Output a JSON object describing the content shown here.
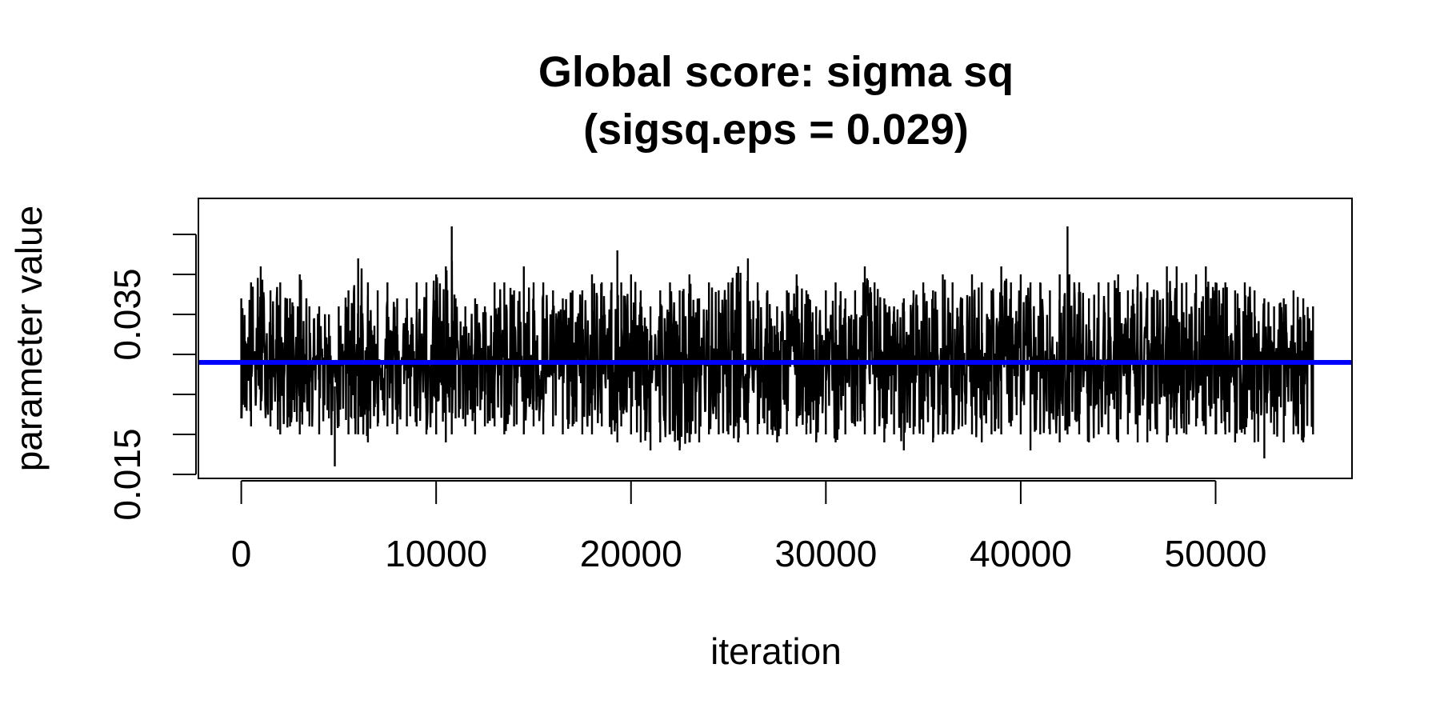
{
  "chart_data": {
    "type": "line",
    "title_line1": "Global score: sigma sq",
    "title_line2": "(sigsq.eps = 0.029)",
    "xlabel": "iteration",
    "ylabel": "parameter value",
    "xlim": [
      -2200,
      57000
    ],
    "ylim": [
      0.0145,
      0.0495
    ],
    "x_ticks": [
      0,
      10000,
      20000,
      30000,
      40000,
      50000
    ],
    "x_tick_labels": [
      "0",
      "10000",
      "20000",
      "30000",
      "40000",
      "50000"
    ],
    "y_ticks": [
      0.015,
      0.02,
      0.025,
      0.03,
      0.035,
      0.04,
      0.045
    ],
    "y_tick_labels": [
      "0.015",
      "",
      "",
      "",
      "0.035",
      "",
      ""
    ],
    "reference_line": {
      "y": 0.029,
      "color": "#0000ff"
    },
    "trace_color": "#000000",
    "series": [
      {
        "x": [
          0,
          500,
          1000,
          1500,
          2000,
          2500,
          3000,
          3500,
          4000,
          4500,
          4800,
          5000,
          5500,
          6000,
          6500,
          7000,
          7500,
          8000,
          8500,
          9000,
          9500,
          10000,
          10500,
          10800,
          11000,
          11500,
          12000,
          12500,
          13000,
          13500,
          14000,
          14500,
          15000,
          15500,
          16000,
          16500,
          17000,
          17500,
          18000,
          18500,
          19000,
          19300,
          19500,
          20000,
          20500,
          21000,
          21500,
          22000,
          22500,
          23000,
          23500,
          24000,
          24500,
          25000,
          25500,
          26000,
          26500,
          27000,
          27500,
          28000,
          28500,
          29000,
          29500,
          30000,
          30500,
          31000,
          31500,
          32000,
          32500,
          33000,
          33500,
          34000,
          34500,
          35000,
          35500,
          36000,
          36500,
          37000,
          37500,
          38000,
          38500,
          39000,
          39500,
          40000,
          40500,
          41000,
          41500,
          42000,
          42400,
          42500,
          43000,
          43500,
          44000,
          44500,
          45000,
          45500,
          46000,
          46500,
          47000,
          47500,
          48000,
          48500,
          49000,
          49500,
          50000,
          50500,
          51000,
          51500,
          52000,
          52500,
          53000,
          53500,
          54000,
          54500,
          55000
        ],
        "ymax": [
          0.037,
          0.039,
          0.041,
          0.038,
          0.039,
          0.037,
          0.04,
          0.036,
          0.036,
          0.035,
          0.026,
          0.036,
          0.038,
          0.042,
          0.039,
          0.038,
          0.039,
          0.037,
          0.037,
          0.039,
          0.039,
          0.04,
          0.041,
          0.046,
          0.037,
          0.036,
          0.037,
          0.036,
          0.039,
          0.039,
          0.038,
          0.041,
          0.039,
          0.039,
          0.038,
          0.037,
          0.038,
          0.038,
          0.04,
          0.039,
          0.039,
          0.043,
          0.039,
          0.04,
          0.038,
          0.036,
          0.038,
          0.039,
          0.038,
          0.04,
          0.037,
          0.039,
          0.038,
          0.039,
          0.041,
          0.042,
          0.039,
          0.038,
          0.036,
          0.038,
          0.04,
          0.038,
          0.036,
          0.038,
          0.039,
          0.037,
          0.038,
          0.041,
          0.039,
          0.037,
          0.036,
          0.037,
          0.038,
          0.039,
          0.038,
          0.04,
          0.039,
          0.037,
          0.04,
          0.039,
          0.038,
          0.041,
          0.039,
          0.04,
          0.039,
          0.039,
          0.038,
          0.04,
          0.046,
          0.04,
          0.039,
          0.037,
          0.039,
          0.039,
          0.04,
          0.038,
          0.04,
          0.039,
          0.038,
          0.041,
          0.041,
          0.039,
          0.04,
          0.041,
          0.039,
          0.039,
          0.038,
          0.039,
          0.038,
          0.037,
          0.036,
          0.037,
          0.038,
          0.037,
          0.036
        ],
        "ymin": [
          0.022,
          0.021,
          0.023,
          0.021,
          0.02,
          0.021,
          0.02,
          0.021,
          0.02,
          0.022,
          0.016,
          0.021,
          0.02,
          0.02,
          0.019,
          0.021,
          0.021,
          0.02,
          0.021,
          0.021,
          0.02,
          0.02,
          0.019,
          0.02,
          0.022,
          0.021,
          0.02,
          0.021,
          0.021,
          0.02,
          0.021,
          0.02,
          0.021,
          0.02,
          0.021,
          0.02,
          0.021,
          0.02,
          0.02,
          0.021,
          0.02,
          0.019,
          0.021,
          0.02,
          0.019,
          0.018,
          0.019,
          0.02,
          0.018,
          0.019,
          0.019,
          0.02,
          0.02,
          0.02,
          0.019,
          0.02,
          0.02,
          0.02,
          0.019,
          0.02,
          0.021,
          0.02,
          0.019,
          0.02,
          0.019,
          0.02,
          0.021,
          0.02,
          0.02,
          0.019,
          0.02,
          0.018,
          0.02,
          0.02,
          0.019,
          0.02,
          0.02,
          0.021,
          0.02,
          0.019,
          0.02,
          0.02,
          0.021,
          0.02,
          0.018,
          0.02,
          0.02,
          0.019,
          0.02,
          0.021,
          0.02,
          0.019,
          0.02,
          0.02,
          0.019,
          0.02,
          0.019,
          0.019,
          0.02,
          0.019,
          0.02,
          0.02,
          0.021,
          0.02,
          0.02,
          0.02,
          0.019,
          0.02,
          0.019,
          0.017,
          0.02,
          0.019,
          0.02,
          0.019,
          0.02
        ]
      }
    ]
  }
}
